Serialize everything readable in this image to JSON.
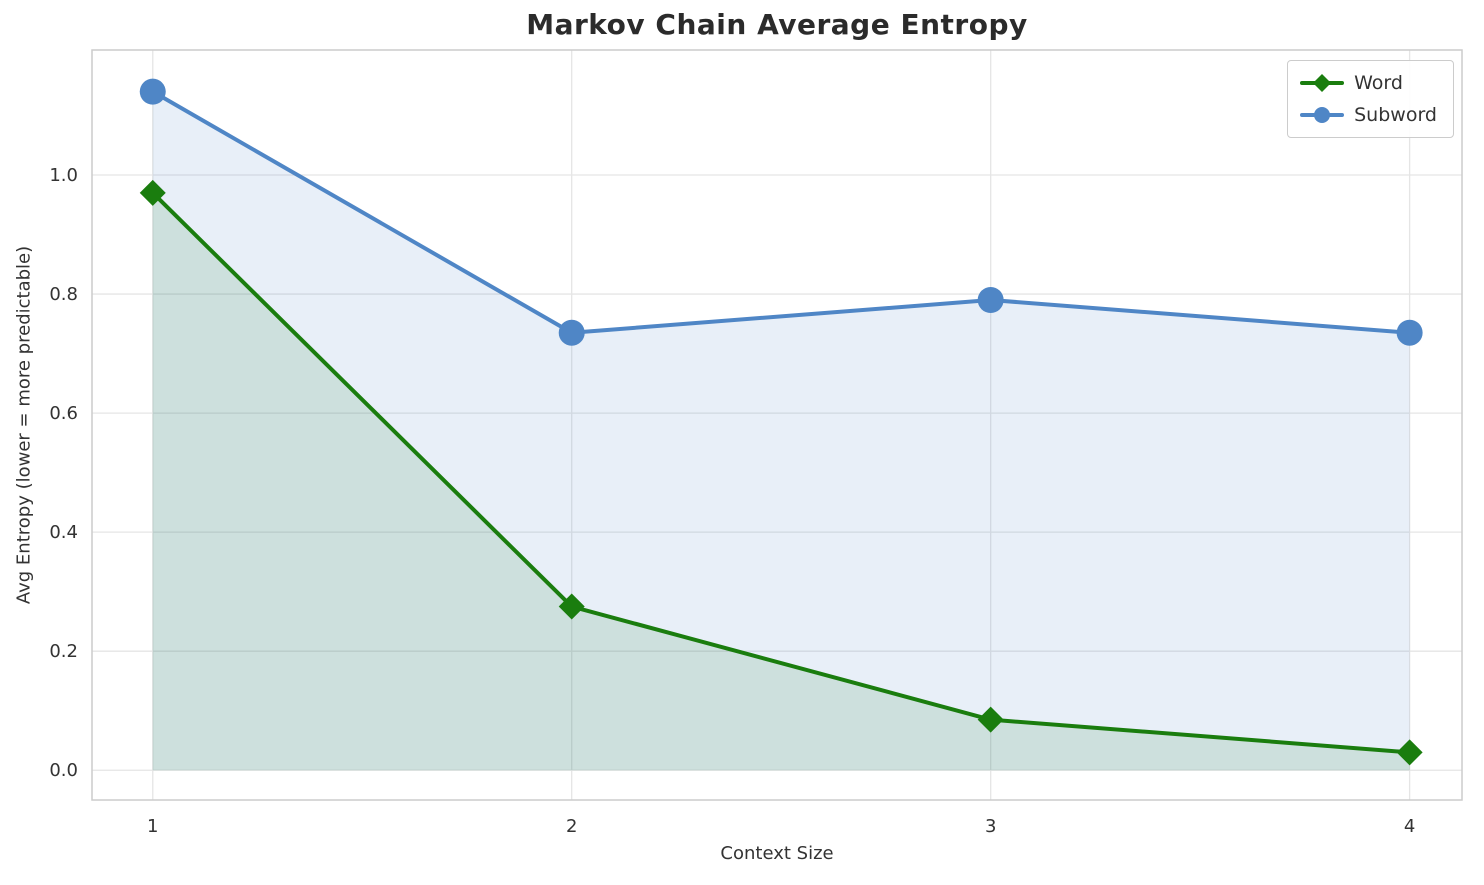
{
  "chart_data": {
    "type": "line",
    "title": "Markov Chain Average Entropy",
    "xlabel": "Context Size",
    "ylabel": "Avg Entropy (lower = more predictable)",
    "x": [
      1,
      2,
      3,
      4
    ],
    "series": [
      {
        "name": "Word",
        "values": [
          0.97,
          0.275,
          0.085,
          0.03
        ],
        "color": "#1a7d0e",
        "marker": "diamond",
        "fill_to_zero": true
      },
      {
        "name": "Subword",
        "values": [
          1.14,
          0.735,
          0.79,
          0.735
        ],
        "color": "#4f86c6",
        "marker": "circle",
        "fill_to_zero": true
      }
    ],
    "xtick_labels": [
      "1",
      "2",
      "3",
      "4"
    ],
    "xtick_values": [
      1,
      2,
      3,
      4
    ],
    "ytick_labels": [
      "0.0",
      "0.2",
      "0.4",
      "0.6",
      "0.8",
      "1.0"
    ],
    "ytick_values": [
      0,
      0.2,
      0.4,
      0.6,
      0.8,
      1.0
    ],
    "xlim": [
      0.855,
      4.125
    ],
    "ylim": [
      -0.05,
      1.21
    ],
    "grid": true,
    "legend_position": "upper right",
    "colors": {
      "grid": "#e5e5e5",
      "spine": "#cccccc",
      "fill_opacity": 0.13,
      "tick_text": "#333333"
    }
  }
}
